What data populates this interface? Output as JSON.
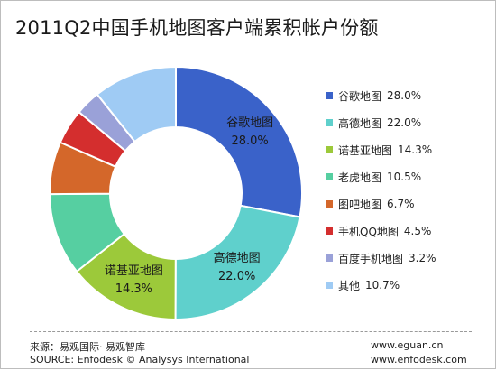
{
  "title": "2011Q2中国手机地图客户端累积帐户份额",
  "chart_data": {
    "type": "pie",
    "style": "donut",
    "title": "2011Q2中国手机地图客户端累积帐户份额",
    "legend_position": "right",
    "slices": [
      {
        "name": "谷歌地图",
        "value": 28.0,
        "label": "28.0%",
        "color": "#3a62c9"
      },
      {
        "name": "高德地图",
        "value": 22.0,
        "label": "22.0%",
        "color": "#5fd0cc"
      },
      {
        "name": "诺基亚地图",
        "value": 14.3,
        "label": "14.3%",
        "color": "#9cc93a"
      },
      {
        "name": "老虎地图",
        "value": 10.5,
        "label": "10.5%",
        "color": "#56cfa1"
      },
      {
        "name": "图吧地图",
        "value": 6.7,
        "label": "6.7%",
        "color": "#d4672a"
      },
      {
        "name": "手机QQ地图",
        "value": 4.5,
        "label": "4.5%",
        "color": "#d42e2e"
      },
      {
        "name": "百度手机地图",
        "value": 3.2,
        "label": "3.2%",
        "color": "#9aa1d8"
      },
      {
        "name": "其他",
        "value": 10.7,
        "label": "10.7%",
        "color": "#9fcbf4"
      }
    ]
  },
  "footer": {
    "source_cn": "来源：易观国际· 易观智库",
    "source_en": "SOURCE: Enfodesk © Analysys International",
    "url1": "www.eguan.cn",
    "url2": "www.enfodesk.com"
  }
}
